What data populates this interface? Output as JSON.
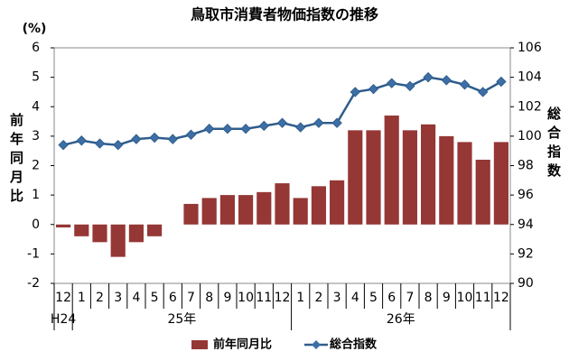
{
  "chart_data": {
    "type": "bar",
    "title": "鳥取市消費者物価指数の推移",
    "y_unit_label": "(%)",
    "ylabel": "前年同月比",
    "y2label": "総合指数",
    "categories": [
      "12",
      "1",
      "2",
      "3",
      "4",
      "5",
      "6",
      "7",
      "8",
      "9",
      "10",
      "11",
      "12",
      "1",
      "2",
      "3",
      "4",
      "5",
      "6",
      "7",
      "8",
      "9",
      "10",
      "11",
      "12"
    ],
    "year_labels": [
      "H24",
      "25年",
      "26年"
    ],
    "series": [
      {
        "name": "前年同月比",
        "type": "bar",
        "color": "#953735",
        "values": [
          -0.1,
          -0.4,
          -0.6,
          -1.1,
          -0.6,
          -0.4,
          0,
          0.7,
          0.9,
          1.0,
          1.0,
          1.1,
          1.4,
          0.9,
          1.3,
          1.5,
          3.2,
          3.2,
          3.7,
          3.2,
          3.4,
          3.0,
          2.8,
          2.2,
          2.8
        ]
      },
      {
        "name": "総合指数",
        "type": "line",
        "axis": "y2",
        "color": "#2f5d8c",
        "marker_color": "#3d6fa6",
        "values": [
          99.4,
          99.7,
          99.5,
          99.4,
          99.8,
          99.9,
          99.8,
          100.1,
          100.5,
          100.5,
          100.5,
          100.7,
          100.9,
          100.6,
          100.9,
          100.9,
          103.0,
          103.2,
          103.6,
          103.4,
          104.0,
          103.8,
          103.5,
          103.0,
          103.7
        ]
      }
    ],
    "ylim": [
      -2,
      6
    ],
    "yticks": [
      -2,
      -1,
      0,
      1,
      2,
      3,
      4,
      5,
      6
    ],
    "y2lim": [
      90,
      106
    ],
    "y2ticks": [
      90,
      92,
      94,
      96,
      98,
      100,
      102,
      104,
      106
    ],
    "legend": "bottom"
  }
}
